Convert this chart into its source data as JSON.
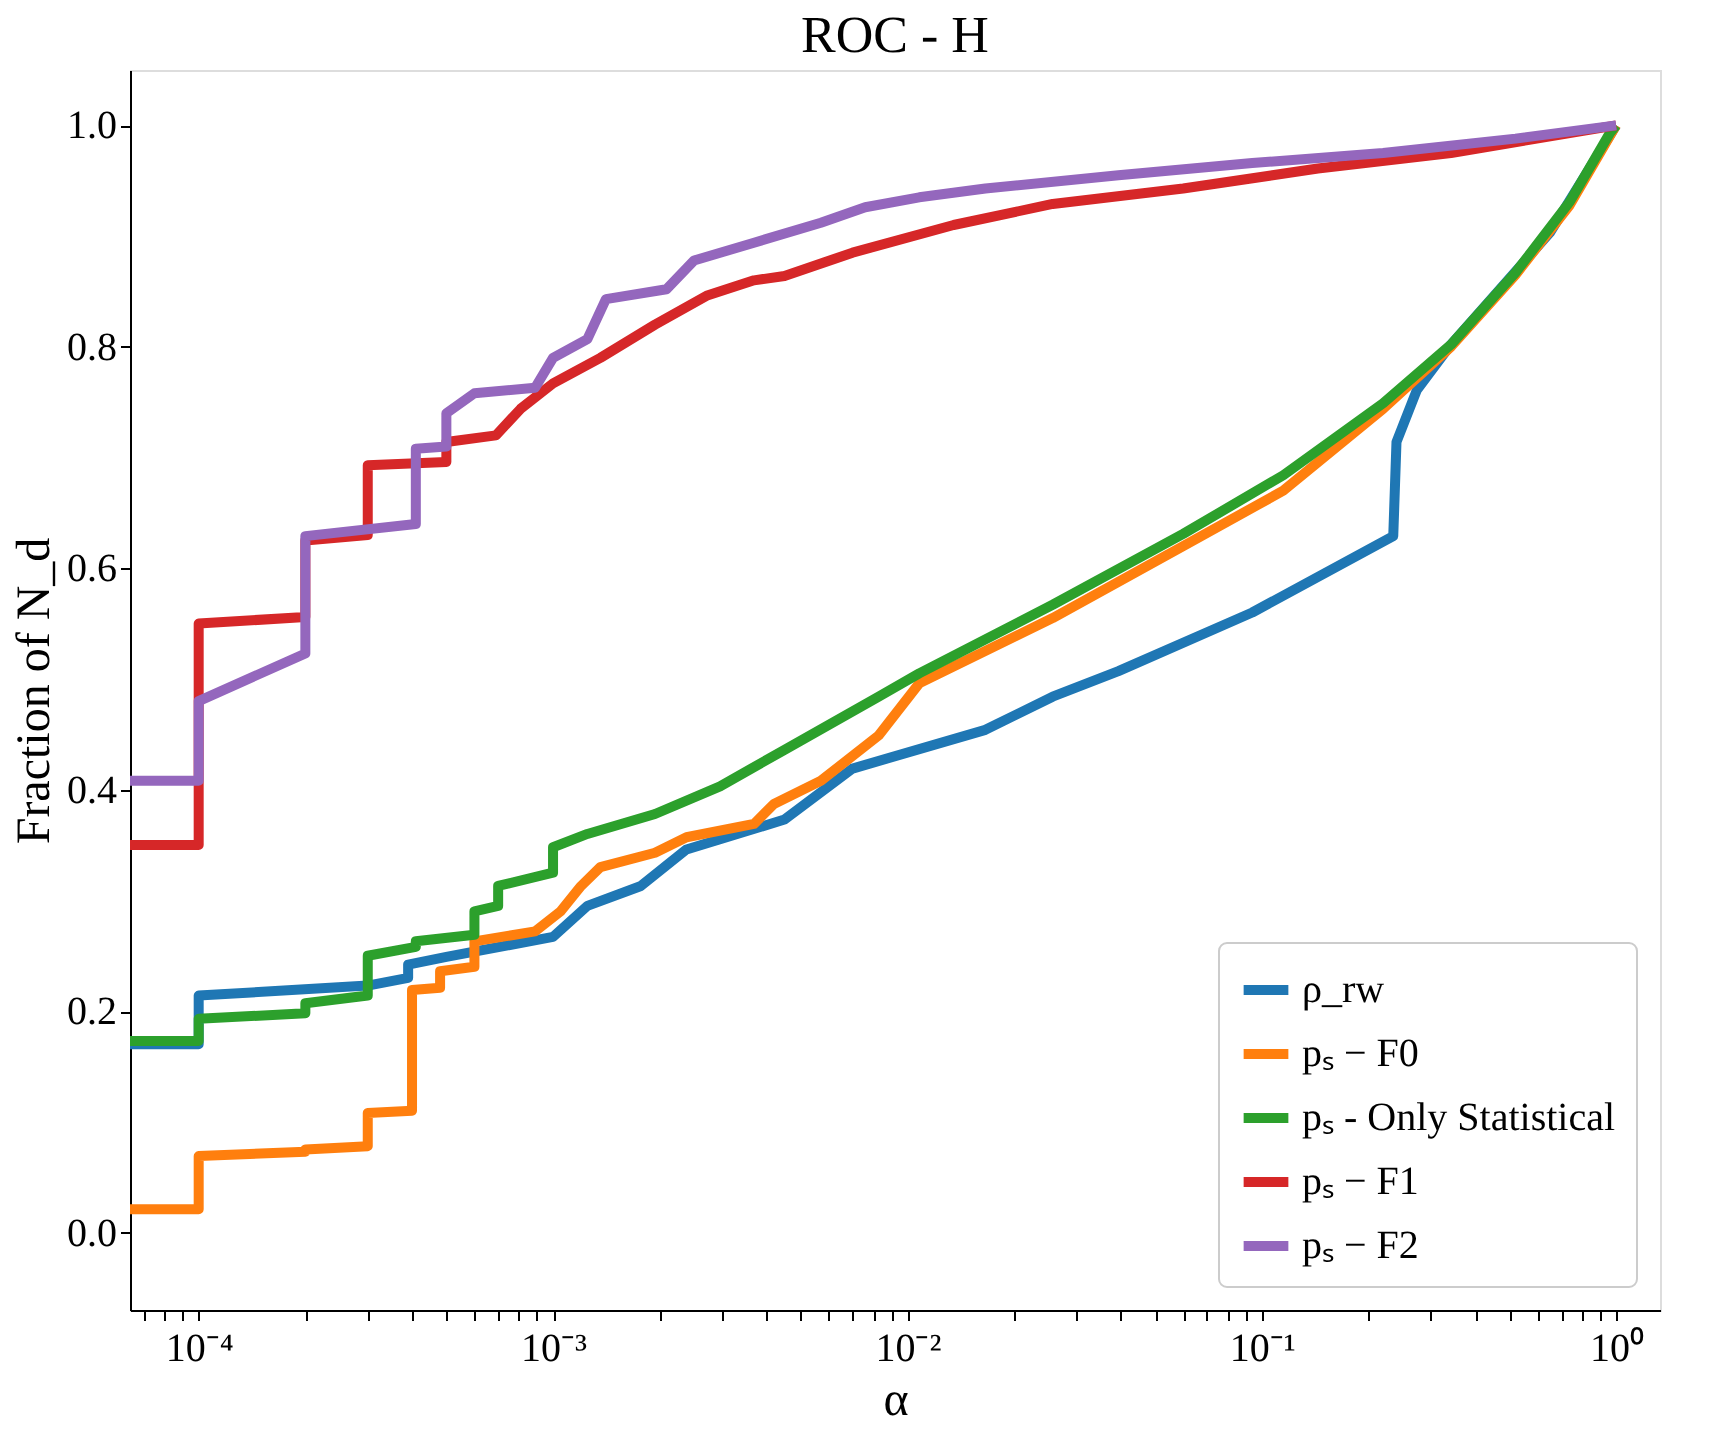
{
  "chart_data": {
    "type": "line",
    "title": "ROC - H",
    "xlabel": "α",
    "ylabel": "Fraction of N_d",
    "log": "x",
    "grid": false,
    "legend": "bottom right",
    "xlim": [
      6.4e-05,
      1.33
    ],
    "ylim": [
      -0.07,
      1.05
    ],
    "xticks": [
      {
        "value": 7e-05,
        "label": null
      },
      {
        "value": 8e-05,
        "label": null
      },
      {
        "value": 9e-05,
        "label": null
      },
      {
        "value": 0.0001,
        "label": "10⁻⁴"
      },
      {
        "value": 0.0002,
        "label": null
      },
      {
        "value": 0.0003,
        "label": null
      },
      {
        "value": 0.0004,
        "label": null
      },
      {
        "value": 0.0005,
        "label": null
      },
      {
        "value": 0.0006,
        "label": null
      },
      {
        "value": 0.0007,
        "label": null
      },
      {
        "value": 0.0008,
        "label": null
      },
      {
        "value": 0.0009,
        "label": null
      },
      {
        "value": 0.001,
        "label": "10⁻³"
      },
      {
        "value": 0.002,
        "label": null
      },
      {
        "value": 0.003,
        "label": null
      },
      {
        "value": 0.004,
        "label": null
      },
      {
        "value": 0.005,
        "label": null
      },
      {
        "value": 0.006,
        "label": null
      },
      {
        "value": 0.007,
        "label": null
      },
      {
        "value": 0.008,
        "label": null
      },
      {
        "value": 0.009,
        "label": null
      },
      {
        "value": 0.01,
        "label": "10⁻²"
      },
      {
        "value": 0.02,
        "label": null
      },
      {
        "value": 0.03,
        "label": null
      },
      {
        "value": 0.04,
        "label": null
      },
      {
        "value": 0.05,
        "label": null
      },
      {
        "value": 0.06,
        "label": null
      },
      {
        "value": 0.07,
        "label": null
      },
      {
        "value": 0.08,
        "label": null
      },
      {
        "value": 0.09,
        "label": null
      },
      {
        "value": 0.1,
        "label": "10⁻¹"
      },
      {
        "value": 0.2,
        "label": null
      },
      {
        "value": 0.3,
        "label": null
      },
      {
        "value": 0.4,
        "label": null
      },
      {
        "value": 0.5,
        "label": null
      },
      {
        "value": 0.6,
        "label": null
      },
      {
        "value": 0.7,
        "label": null
      },
      {
        "value": 0.8,
        "label": null
      },
      {
        "value": 0.9,
        "label": null
      },
      {
        "value": 1,
        "label": "10⁰"
      }
    ],
    "yticks": [
      {
        "value": 0,
        "label": "0.0"
      },
      {
        "value": 0.2,
        "label": "0.2"
      },
      {
        "value": 0.4,
        "label": "0.4"
      },
      {
        "value": 0.6,
        "label": "0.6"
      },
      {
        "value": 0.8,
        "label": "0.8"
      },
      {
        "value": 1,
        "label": "1.0"
      }
    ],
    "series": [
      {
        "name": "ρ_rw",
        "color": "#1f77b4",
        "x": [
          6.4e-05,
          0.0001,
          0.0001,
          0.0003,
          0.00039,
          0.00039,
          0.0005,
          0.001,
          0.00125,
          0.00177,
          0.00238,
          0.0045,
          0.007,
          0.0166,
          0.0257,
          0.0394,
          0.094,
          0.235,
          0.24,
          0.274,
          0.342,
          0.65,
          1
        ],
        "values": [
          0.17,
          0.17,
          0.214,
          0.223,
          0.23,
          0.242,
          0.249,
          0.267,
          0.295,
          0.313,
          0.346,
          0.373,
          0.419,
          0.454,
          0.484,
          0.507,
          0.56,
          0.629,
          0.714,
          0.761,
          0.802,
          0.903,
          1.0
        ]
      },
      {
        "name": "pₛ − F0",
        "color": "#ff7f0e",
        "x": [
          6.4e-05,
          0.0001,
          0.0001,
          0.0002,
          0.0002,
          0.0003,
          0.0003,
          0.0004,
          0.0004,
          0.00048,
          0.00048,
          0.0006,
          0.0006,
          0.00089,
          0.00105,
          0.0012,
          0.00136,
          0.00194,
          0.00238,
          0.00369,
          0.0042,
          0.0057,
          0.0083,
          0.0108,
          0.0257,
          0.06,
          0.115,
          0.22,
          0.342,
          0.52,
          0.74,
          1
        ],
        "values": [
          0.021,
          0.021,
          0.069,
          0.073,
          0.075,
          0.078,
          0.108,
          0.11,
          0.219,
          0.221,
          0.236,
          0.24,
          0.263,
          0.272,
          0.29,
          0.313,
          0.33,
          0.343,
          0.357,
          0.369,
          0.387,
          0.408,
          0.449,
          0.496,
          0.555,
          0.62,
          0.67,
          0.744,
          0.8,
          0.865,
          0.928,
          1.0
        ]
      },
      {
        "name": "pₛ - Only Statistical",
        "color": "#2ca02c",
        "x": [
          6.4e-05,
          0.0001,
          0.0001,
          0.0002,
          0.0002,
          0.0003,
          0.0003,
          0.00041,
          0.00041,
          0.0006,
          0.0006,
          0.0007,
          0.0007,
          0.001,
          0.001,
          0.00125,
          0.00194,
          0.00296,
          0.0045,
          0.0083,
          0.0108,
          0.0257,
          0.06,
          0.115,
          0.22,
          0.342,
          0.52,
          0.74,
          0.96,
          1
        ],
        "values": [
          0.173,
          0.173,
          0.193,
          0.198,
          0.207,
          0.214,
          0.25,
          0.258,
          0.263,
          0.269,
          0.29,
          0.295,
          0.313,
          0.325,
          0.348,
          0.36,
          0.378,
          0.403,
          0.436,
          0.484,
          0.505,
          0.567,
          0.631,
          0.684,
          0.749,
          0.802,
          0.867,
          0.931,
          0.993,
          1.0
        ]
      },
      {
        "name": "pₛ − F1",
        "color": "#d62728",
        "x": [
          6.4e-05,
          0.0001,
          0.0001,
          0.0002,
          0.0002,
          0.0003,
          0.0003,
          0.0005,
          0.0005,
          0.00069,
          0.00081,
          0.001,
          0.00136,
          0.00194,
          0.00271,
          0.00369,
          0.0045,
          0.007,
          0.0135,
          0.0257,
          0.06,
          0.144,
          0.342,
          1
        ],
        "values": [
          0.35,
          0.35,
          0.55,
          0.556,
          0.625,
          0.63,
          0.693,
          0.696,
          0.714,
          0.72,
          0.744,
          0.767,
          0.79,
          0.82,
          0.846,
          0.86,
          0.864,
          0.885,
          0.91,
          0.929,
          0.943,
          0.961,
          0.975,
          1.0
        ]
      },
      {
        "name": "pₛ − F2",
        "color": "#9467bd",
        "x": [
          6.4e-05,
          0.0001,
          0.0001,
          0.0002,
          0.0002,
          0.00041,
          0.00041,
          0.0005,
          0.0005,
          0.0006,
          0.00089,
          0.001,
          0.00125,
          0.00141,
          0.00209,
          0.0025,
          0.00369,
          0.0057,
          0.0076,
          0.0108,
          0.0166,
          0.0394,
          0.094,
          0.22,
          0.52,
          1
        ],
        "values": [
          0.408,
          0.408,
          0.48,
          0.523,
          0.629,
          0.64,
          0.708,
          0.71,
          0.74,
          0.758,
          0.763,
          0.79,
          0.807,
          0.843,
          0.852,
          0.878,
          0.894,
          0.912,
          0.926,
          0.935,
          0.943,
          0.955,
          0.966,
          0.975,
          0.988,
          1.0
        ]
      }
    ]
  }
}
